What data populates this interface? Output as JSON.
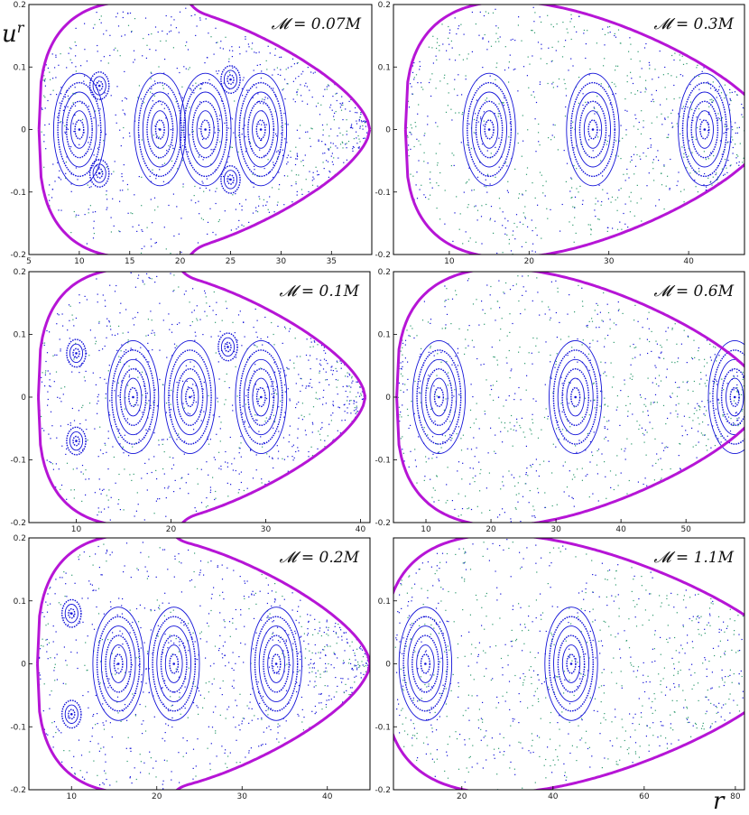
{
  "figure": {
    "ylabel": "u^r",
    "xlabel": "r"
  },
  "colors": {
    "boundary": "#b615d6",
    "orbit": "#1212d8",
    "chaos": "#2e9a6e",
    "frame": "#000000"
  },
  "chart_data": [
    {
      "type": "scatter",
      "title": "𝓜 = 0.07M",
      "xlim": [
        5,
        39
      ],
      "ylim": [
        -0.2,
        0.2
      ],
      "xticks": [
        "5",
        "10",
        "15",
        "20",
        "25",
        "30",
        "35"
      ],
      "yticks": [
        "0.2",
        "0.1",
        "0",
        "-0.1",
        "-0.2"
      ],
      "boundary": {
        "r_left": 6.0,
        "r_neck": 20,
        "r_right": 38.8,
        "sharp": 0.5
      },
      "islands": [
        [
          10,
          0
        ],
        [
          18,
          0
        ],
        [
          22.5,
          0
        ],
        [
          28,
          0
        ],
        [
          12,
          0.07
        ],
        [
          12,
          -0.07
        ],
        [
          25,
          0.08
        ],
        [
          25,
          -0.08
        ]
      ]
    },
    {
      "type": "scatter",
      "title": "𝓜 = 0.3M",
      "xlim": [
        3,
        47
      ],
      "ylim": [
        -0.2,
        0.2
      ],
      "xticks": [
        "10",
        "20",
        "30",
        "40"
      ],
      "yticks": [
        "0.2",
        "0.1",
        "0",
        "-0.1",
        "-0.2"
      ],
      "boundary": {
        "r_left": 4.5,
        "r_neck": null,
        "r_right": 50,
        "sharp": 0
      },
      "islands": [
        [
          15,
          0
        ],
        [
          28,
          0
        ],
        [
          42,
          0
        ]
      ]
    },
    {
      "type": "scatter",
      "title": "𝓜 = 0.1M",
      "xlim": [
        5,
        41
      ],
      "ylim": [
        -0.2,
        0.2
      ],
      "xticks": [
        "10",
        "20",
        "30",
        "40"
      ],
      "yticks": [
        "0.2",
        "0.1",
        "0",
        "-0.1",
        "-0.2"
      ],
      "boundary": {
        "r_left": 6.0,
        "r_neck": 20,
        "r_right": 40.5,
        "sharp": 0.5
      },
      "islands": [
        [
          16,
          0
        ],
        [
          22,
          0
        ],
        [
          29.5,
          0
        ],
        [
          10,
          0.07
        ],
        [
          10,
          -0.07
        ],
        [
          26,
          0.08
        ]
      ]
    },
    {
      "type": "scatter",
      "title": "𝓜 = 0.6M",
      "xlim": [
        5,
        59
      ],
      "ylim": [
        -0.2,
        0.2
      ],
      "xticks": [
        "10",
        "20",
        "30",
        "40",
        "50"
      ],
      "yticks": [
        "0.2",
        "0.1",
        "0",
        "-0.1",
        "-0.2"
      ],
      "boundary": {
        "r_left": 5.5,
        "r_neck": null,
        "r_right": 62,
        "sharp": 0
      },
      "islands": [
        [
          12,
          0
        ],
        [
          33,
          0
        ],
        [
          57.5,
          0
        ]
      ]
    },
    {
      "type": "scatter",
      "title": "𝓜 = 0.2M",
      "xlim": [
        5,
        45
      ],
      "ylim": [
        -0.2,
        0.2
      ],
      "xticks": [
        "10",
        "20",
        "30",
        "40"
      ],
      "yticks": [
        "0.2",
        "0.1",
        "0",
        "-0.1",
        "-0.2"
      ],
      "boundary": {
        "r_left": 6.0,
        "r_neck": 21,
        "r_right": 45,
        "sharp": 0.3
      },
      "islands": [
        [
          15.5,
          0
        ],
        [
          22,
          0
        ],
        [
          34,
          0
        ],
        [
          10,
          0.08
        ],
        [
          10,
          -0.08
        ]
      ]
    },
    {
      "type": "scatter",
      "title": "𝓜 = 1.1M",
      "xlim": [
        5,
        82
      ],
      "ylim": [
        -0.2,
        0.2
      ],
      "xticks": [
        "20",
        "40",
        "60",
        "80"
      ],
      "yticks": [
        "0.1",
        "0",
        "-0.1",
        "-0.2"
      ],
      "boundary": {
        "r_left": 3,
        "r_neck": null,
        "r_right": 92,
        "sharp": 0
      },
      "islands": [
        [
          12,
          0
        ],
        [
          44,
          0
        ]
      ]
    }
  ]
}
